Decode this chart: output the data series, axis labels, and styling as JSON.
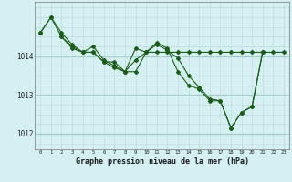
{
  "title": "Graphe pression niveau de la mer (hPa)",
  "background_color": "#d4f0f0",
  "line_color": "#1a5c1a",
  "grid_color_minor": "#c0dede",
  "grid_color_major": "#a8cccc",
  "xlim": [
    -0.5,
    23.5
  ],
  "ylim": [
    1011.6,
    1015.4
  ],
  "yticks": [
    1012,
    1013,
    1014
  ],
  "xtick_labels": [
    "0",
    "1",
    "2",
    "3",
    "4",
    "5",
    "6",
    "7",
    "8",
    "9",
    "10",
    "11",
    "12",
    "13",
    "14",
    "15",
    "16",
    "17",
    "18",
    "19",
    "20",
    "21",
    "22",
    "23"
  ],
  "xticks": [
    0,
    1,
    2,
    3,
    4,
    5,
    6,
    7,
    8,
    9,
    10,
    11,
    12,
    13,
    14,
    15,
    16,
    17,
    18,
    19,
    20,
    21,
    22,
    23
  ],
  "minor_yticks": [
    1011.75,
    1012.0,
    1012.25,
    1012.5,
    1012.75,
    1013.0,
    1013.25,
    1013.5,
    1013.75,
    1014.0,
    1014.25,
    1014.5,
    1014.75,
    1015.0,
    1015.25
  ],
  "series1_x": [
    0,
    1,
    2,
    3,
    4,
    5,
    6,
    7,
    8,
    9,
    10,
    11,
    12,
    13,
    14,
    15,
    16,
    17,
    18,
    19,
    20,
    21,
    22,
    23
  ],
  "series1_y": [
    1014.6,
    1015.0,
    1014.6,
    1014.3,
    1014.1,
    1014.1,
    1013.85,
    1013.85,
    1013.6,
    1013.6,
    1014.1,
    1014.1,
    1014.1,
    1014.1,
    1014.1,
    1014.1,
    1014.1,
    1014.1,
    1014.1,
    1014.1,
    1014.1,
    1014.1,
    1014.1,
    1014.1
  ],
  "series2_x": [
    0,
    1,
    2,
    3,
    4,
    5,
    6,
    7,
    8,
    9,
    10,
    11,
    12,
    13,
    14,
    15,
    16,
    17,
    18,
    19,
    20,
    21
  ],
  "series2_y": [
    1014.6,
    1015.0,
    1014.5,
    1014.2,
    1014.1,
    1014.25,
    1013.9,
    1013.75,
    1013.6,
    1014.2,
    1014.1,
    1014.35,
    1014.2,
    1013.6,
    1013.25,
    1013.15,
    1012.85,
    1012.85,
    1012.15,
    1012.55,
    1012.7,
    1014.1
  ],
  "series3_x": [
    2,
    3,
    4,
    5,
    6,
    7,
    8,
    9,
    10,
    11,
    12,
    13,
    14,
    15,
    16,
    17,
    18,
    19,
    20,
    21
  ],
  "series3_y": [
    1014.5,
    1014.25,
    1014.1,
    1014.1,
    1013.85,
    1013.7,
    1013.6,
    1013.9,
    1014.1,
    1014.3,
    1014.15,
    1013.95,
    1013.5,
    1013.2,
    1012.9,
    1012.85,
    1012.15,
    1012.55,
    1012.7,
    1014.1
  ]
}
